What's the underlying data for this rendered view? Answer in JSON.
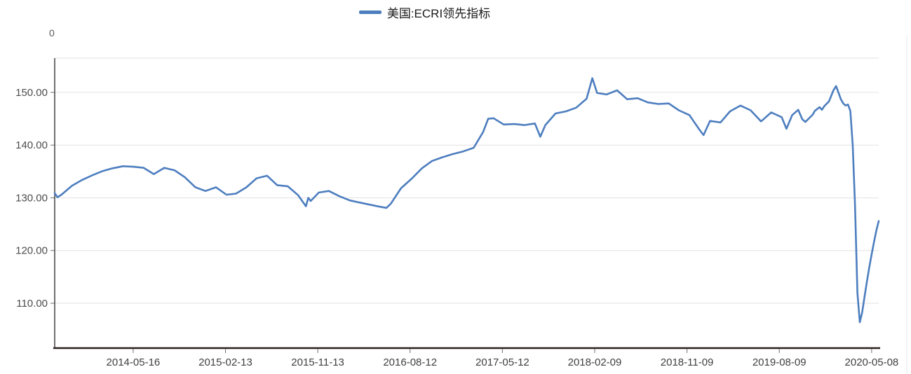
{
  "legend": {
    "label": "美国:ECRI领先指标"
  },
  "axes": {
    "stray_zero_label": "0",
    "y_ticks": [
      {
        "label": "150.00",
        "value": 150
      },
      {
        "label": "140.00",
        "value": 140
      },
      {
        "label": "130.00",
        "value": 130
      },
      {
        "label": "120.00",
        "value": 120
      },
      {
        "label": "110.00",
        "value": 110
      }
    ],
    "x_ticks": [
      {
        "label": "2014-05-16",
        "date": "2014-05-16"
      },
      {
        "label": "2015-02-13",
        "date": "2015-02-13"
      },
      {
        "label": "2015-11-13",
        "date": "2015-11-13"
      },
      {
        "label": "2016-08-12",
        "date": "2016-08-12"
      },
      {
        "label": "2017-05-12",
        "date": "2017-05-12"
      },
      {
        "label": "2018-02-09",
        "date": "2018-02-09"
      },
      {
        "label": "2018-11-09",
        "date": "2018-11-09"
      },
      {
        "label": "2019-08-09",
        "date": "2019-08-09"
      },
      {
        "label": "2020-05-08",
        "date": "2020-05-08"
      }
    ]
  },
  "colors": {
    "line": "#4d7ebf",
    "x_axis_line": "#29211f",
    "y_axis_line": "#404040",
    "grid": "#e2e2e2",
    "tick_mark": "#6e6e6e",
    "x_tick_text": "#3f3f3f",
    "y_tick_text": "#4d4d4d",
    "right_border": "#e7e7e7"
  },
  "chart_data": {
    "type": "line",
    "title": "",
    "xlabel": "",
    "ylabel": "",
    "ylim": [
      101.5,
      156.5
    ],
    "x_range": [
      "2013-09-26",
      "2020-05-29"
    ],
    "grid": "horizontal",
    "legend_position": "top-center",
    "series": [
      {
        "name": "美国:ECRI领先指标",
        "points": [
          [
            "2013-09-26",
            130.9
          ],
          [
            "2013-10-04",
            130.1
          ],
          [
            "2013-10-16",
            130.6
          ],
          [
            "2013-11-16",
            132.3
          ],
          [
            "2013-12-16",
            133.4
          ],
          [
            "2014-01-16",
            134.3
          ],
          [
            "2014-02-16",
            135.1
          ],
          [
            "2014-03-16",
            135.6
          ],
          [
            "2014-04-16",
            136.0
          ],
          [
            "2014-05-16",
            135.9
          ],
          [
            "2014-06-16",
            135.7
          ],
          [
            "2014-07-16",
            134.5
          ],
          [
            "2014-08-16",
            135.7
          ],
          [
            "2014-09-16",
            135.2
          ],
          [
            "2014-10-16",
            133.9
          ],
          [
            "2014-11-16",
            132.0
          ],
          [
            "2014-12-16",
            131.3
          ],
          [
            "2015-01-16",
            132.0
          ],
          [
            "2015-02-16",
            130.6
          ],
          [
            "2015-03-16",
            130.8
          ],
          [
            "2015-04-16",
            132.0
          ],
          [
            "2015-05-16",
            133.7
          ],
          [
            "2015-06-16",
            134.2
          ],
          [
            "2015-07-16",
            132.4
          ],
          [
            "2015-08-16",
            132.2
          ],
          [
            "2015-09-16",
            130.5
          ],
          [
            "2015-10-09",
            128.4
          ],
          [
            "2015-10-16",
            130.0
          ],
          [
            "2015-10-23",
            129.4
          ],
          [
            "2015-11-16",
            131.0
          ],
          [
            "2015-12-16",
            131.3
          ],
          [
            "2016-01-16",
            130.3
          ],
          [
            "2016-02-16",
            129.5
          ],
          [
            "2016-03-16",
            129.1
          ],
          [
            "2016-04-16",
            128.7
          ],
          [
            "2016-05-16",
            128.3
          ],
          [
            "2016-06-03",
            128.1
          ],
          [
            "2016-06-16",
            128.9
          ],
          [
            "2016-07-16",
            131.8
          ],
          [
            "2016-08-16",
            133.6
          ],
          [
            "2016-09-16",
            135.6
          ],
          [
            "2016-10-16",
            137.0
          ],
          [
            "2016-11-16",
            137.7
          ],
          [
            "2016-12-16",
            138.3
          ],
          [
            "2017-01-16",
            138.8
          ],
          [
            "2017-02-16",
            139.5
          ],
          [
            "2017-03-16",
            142.5
          ],
          [
            "2017-03-31",
            145.0
          ],
          [
            "2017-04-16",
            145.1
          ],
          [
            "2017-05-16",
            143.9
          ],
          [
            "2017-06-16",
            144.0
          ],
          [
            "2017-07-16",
            143.8
          ],
          [
            "2017-08-16",
            144.1
          ],
          [
            "2017-09-01",
            141.6
          ],
          [
            "2017-09-16",
            143.8
          ],
          [
            "2017-10-16",
            146.0
          ],
          [
            "2017-11-16",
            146.4
          ],
          [
            "2017-12-16",
            147.1
          ],
          [
            "2018-01-16",
            148.8
          ],
          [
            "2018-02-02",
            152.7
          ],
          [
            "2018-02-16",
            149.9
          ],
          [
            "2018-03-16",
            149.6
          ],
          [
            "2018-04-16",
            150.4
          ],
          [
            "2018-05-16",
            148.7
          ],
          [
            "2018-06-16",
            148.9
          ],
          [
            "2018-07-16",
            148.1
          ],
          [
            "2018-08-16",
            147.8
          ],
          [
            "2018-09-16",
            147.9
          ],
          [
            "2018-10-16",
            146.6
          ],
          [
            "2018-11-16",
            145.7
          ],
          [
            "2018-12-16",
            142.9
          ],
          [
            "2018-12-28",
            141.9
          ],
          [
            "2019-01-16",
            144.6
          ],
          [
            "2019-02-16",
            144.3
          ],
          [
            "2019-03-16",
            146.4
          ],
          [
            "2019-04-16",
            147.5
          ],
          [
            "2019-05-16",
            146.6
          ],
          [
            "2019-06-16",
            144.5
          ],
          [
            "2019-07-16",
            146.2
          ],
          [
            "2019-08-16",
            145.3
          ],
          [
            "2019-08-30",
            143.1
          ],
          [
            "2019-09-16",
            145.7
          ],
          [
            "2019-10-04",
            146.7
          ],
          [
            "2019-10-16",
            144.9
          ],
          [
            "2019-10-25",
            144.4
          ],
          [
            "2019-11-16",
            145.8
          ],
          [
            "2019-11-22",
            146.5
          ],
          [
            "2019-12-06",
            147.2
          ],
          [
            "2019-12-13",
            146.7
          ],
          [
            "2019-12-20",
            147.4
          ],
          [
            "2020-01-03",
            148.3
          ],
          [
            "2020-01-16",
            150.4
          ],
          [
            "2020-01-24",
            151.2
          ],
          [
            "2020-02-07",
            148.7
          ],
          [
            "2020-02-14",
            147.9
          ],
          [
            "2020-02-21",
            147.5
          ],
          [
            "2020-02-28",
            147.7
          ],
          [
            "2020-03-06",
            146.5
          ],
          [
            "2020-03-13",
            140.0
          ],
          [
            "2020-03-20",
            128.5
          ],
          [
            "2020-03-27",
            112.0
          ],
          [
            "2020-04-03",
            106.4
          ],
          [
            "2020-04-10",
            108.3
          ],
          [
            "2020-04-17",
            111.2
          ],
          [
            "2020-04-24",
            114.1
          ],
          [
            "2020-05-01",
            116.8
          ],
          [
            "2020-05-08",
            119.3
          ],
          [
            "2020-05-15",
            121.6
          ],
          [
            "2020-05-22",
            123.8
          ],
          [
            "2020-05-29",
            125.6
          ]
        ]
      }
    ]
  }
}
